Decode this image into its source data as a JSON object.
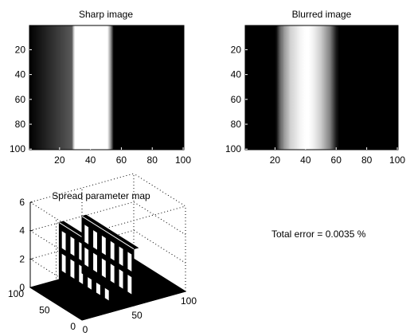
{
  "chart_data": [
    {
      "type": "heatmap",
      "title": "Sharp image",
      "colormap": "gray",
      "xlim": [
        0.5,
        100.5
      ],
      "ylim": [
        0.5,
        100.5
      ],
      "y_reversed": true,
      "xticks": [
        20,
        40,
        60,
        80,
        100
      ],
      "yticks": [
        20,
        40,
        60,
        80,
        100
      ],
      "profile": {
        "x": [
          28,
          29,
          30,
          50,
          51,
          52,
          53,
          54
        ],
        "intensity": [
          0.35,
          0.75,
          1.0,
          1.0,
          1.0,
          0.8,
          0.6,
          0.3
        ]
      },
      "bright_range": [
        28,
        54
      ],
      "background": 0
    },
    {
      "type": "heatmap",
      "title": "Blurred image",
      "colormap": "gray",
      "xlim": [
        0.5,
        100.5
      ],
      "ylim": [
        0.5,
        100.5
      ],
      "y_reversed": true,
      "xticks": [
        20,
        40,
        60,
        80,
        100
      ],
      "yticks": [
        20,
        40,
        60,
        80,
        100
      ],
      "profile": {
        "x": [
          20,
          21,
          22,
          23,
          24,
          25,
          26,
          27,
          28,
          29,
          30,
          32,
          34,
          36,
          38,
          40,
          42,
          44,
          46,
          48,
          50,
          52,
          54,
          56,
          57,
          58,
          59,
          60,
          61,
          62
        ],
        "intensity": [
          0.0,
          0.05,
          0.2,
          0.35,
          0.45,
          0.5,
          0.6,
          0.65,
          0.7,
          0.75,
          0.82,
          0.86,
          0.9,
          0.95,
          0.98,
          1.0,
          1.0,
          0.97,
          0.92,
          0.86,
          0.8,
          0.7,
          0.6,
          0.5,
          0.4,
          0.3,
          0.2,
          0.1,
          0.05,
          0.0
        ]
      }
    },
    {
      "type": "surface3d",
      "title": "Spread parameter map",
      "xlim": [
        0,
        100
      ],
      "ylim": [
        0,
        100
      ],
      "zlim": [
        0,
        6
      ],
      "xticks": [
        0,
        50,
        100
      ],
      "yticks": [
        0,
        50,
        100
      ],
      "zticks": [
        0,
        2,
        4,
        6
      ],
      "ridges": [
        {
          "x_range": [
            28,
            32
          ],
          "z": 4
        },
        {
          "x_range": [
            50,
            54
          ],
          "z": 4
        }
      ],
      "background_z": 0
    }
  ],
  "annotation": {
    "text": "Total error = 0.0035 %"
  }
}
